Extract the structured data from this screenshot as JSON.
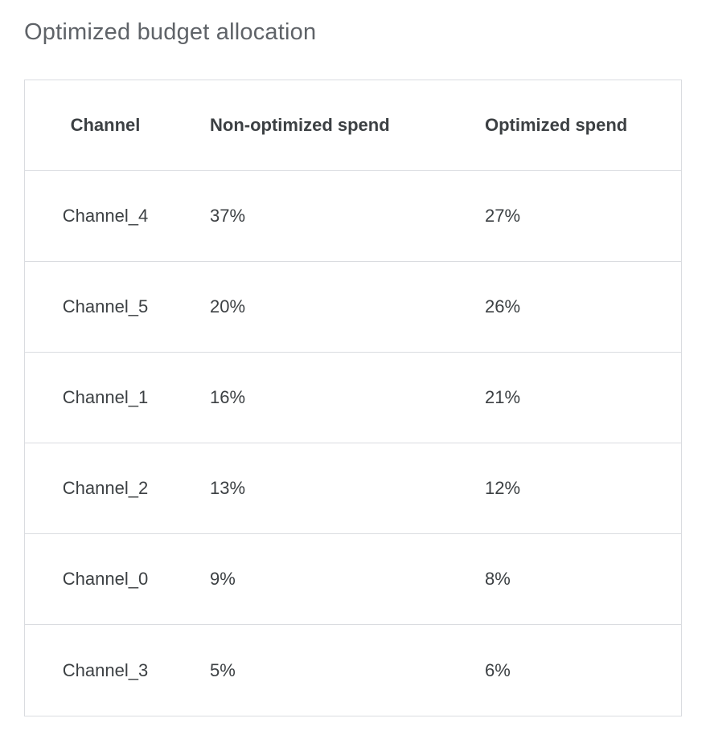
{
  "page": {
    "title": "Optimized budget allocation"
  },
  "table": {
    "columns": {
      "channel": "Channel",
      "non_optimized": "Non-optimized spend",
      "optimized": "Optimized spend"
    },
    "rows": [
      {
        "channel": "Channel_4",
        "non_optimized": "37%",
        "optimized": "27%"
      },
      {
        "channel": "Channel_5",
        "non_optimized": "20%",
        "optimized": "26%"
      },
      {
        "channel": "Channel_1",
        "non_optimized": "16%",
        "optimized": "21%"
      },
      {
        "channel": "Channel_2",
        "non_optimized": "13%",
        "optimized": "12%"
      },
      {
        "channel": "Channel_0",
        "non_optimized": "9%",
        "optimized": "8%"
      },
      {
        "channel": "Channel_3",
        "non_optimized": "5%",
        "optimized": "6%"
      }
    ]
  },
  "chart_data": {
    "type": "table",
    "title": "Optimized budget allocation",
    "columns": [
      "Channel",
      "Non-optimized spend",
      "Optimized spend"
    ],
    "rows": [
      [
        "Channel_4",
        "37%",
        "27%"
      ],
      [
        "Channel_5",
        "20%",
        "26%"
      ],
      [
        "Channel_1",
        "16%",
        "21%"
      ],
      [
        "Channel_2",
        "13%",
        "12%"
      ],
      [
        "Channel_0",
        "9%",
        "8%"
      ],
      [
        "Channel_3",
        "5%",
        "6%"
      ]
    ],
    "non_optimized_values_pct": [
      37,
      20,
      16,
      13,
      9,
      5
    ],
    "optimized_values_pct": [
      27,
      26,
      21,
      12,
      8,
      6
    ]
  },
  "colors": {
    "title_text": "#5f6368",
    "table_text": "#3c4043",
    "table_border": "#dadce0",
    "background": "#ffffff"
  }
}
